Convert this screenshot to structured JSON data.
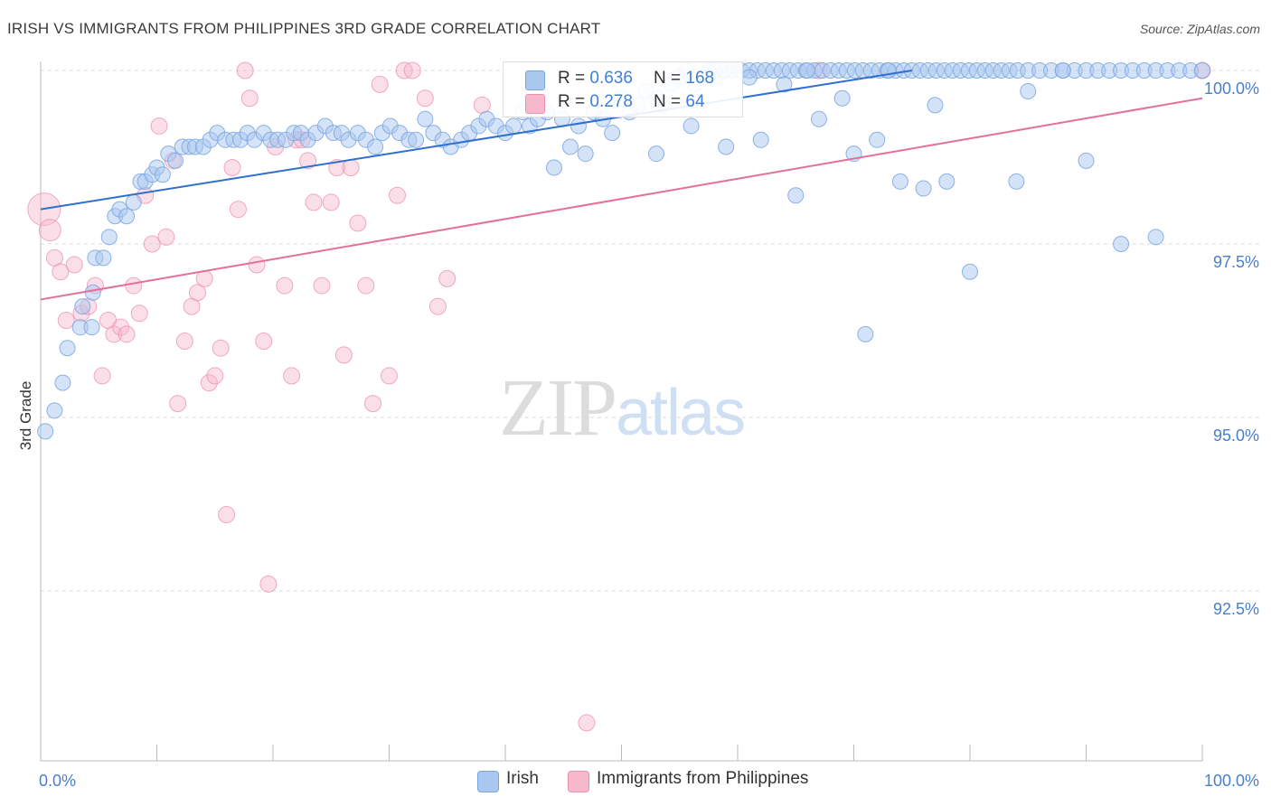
{
  "header": {
    "title": "IRISH VS IMMIGRANTS FROM PHILIPPINES 3RD GRADE CORRELATION CHART",
    "source": "Source: ZipAtlas.com"
  },
  "watermark": {
    "zip": "ZIP",
    "atlas": "atlas"
  },
  "legend": {
    "rows": [
      {
        "r_label": "R = ",
        "r_value": "0.636",
        "n_label": "N = ",
        "n_value": "168",
        "color": "#a9c8f0"
      },
      {
        "r_label": "R = ",
        "r_value": "0.278",
        "n_label": "N = ",
        "n_value": " 64",
        "color": "#f6b9cc"
      }
    ]
  },
  "bottom_legend": {
    "irish": "Irish",
    "philippines": "Immigrants from Philippines"
  },
  "colors": {
    "irish_fill": "#a9c8f0",
    "irish_stroke": "#7aa6e0",
    "irish_line": "#2f6fd0",
    "ph_fill": "#f6b9cc",
    "ph_stroke": "#ee8fae",
    "ph_line": "#e46f98",
    "grid": "#d8d8d8",
    "tick_text": "#4a7fc9"
  },
  "chart_data": {
    "type": "scatter",
    "title": "IRISH VS IMMIGRANTS FROM PHILIPPINES 3RD GRADE CORRELATION CHART",
    "xlabel": "",
    "ylabel": "3rd Grade",
    "xlim": [
      0,
      100
    ],
    "ylim": [
      90.0,
      100.4
    ],
    "x_tick_labels": [
      "0.0%",
      "100.0%"
    ],
    "y_ticks": [
      92.5,
      95.0,
      97.5,
      100.0
    ],
    "y_tick_labels": [
      "92.5%",
      "95.0%",
      "97.5%",
      "100.0%"
    ],
    "grid": "horizontal dashed",
    "series": [
      {
        "name": "Irish",
        "R": 0.636,
        "N": 168,
        "trend": [
          [
            0,
            98.0
          ],
          [
            75,
            100.0
          ]
        ],
        "points": [
          [
            0.4,
            94.8
          ],
          [
            1.2,
            95.1
          ],
          [
            1.9,
            95.5
          ],
          [
            2.3,
            96.0
          ],
          [
            3.4,
            96.3
          ],
          [
            3.6,
            96.6
          ],
          [
            4.4,
            96.3
          ],
          [
            4.5,
            96.8
          ],
          [
            4.7,
            97.3
          ],
          [
            5.4,
            97.3
          ],
          [
            5.9,
            97.6
          ],
          [
            6.4,
            97.9
          ],
          [
            6.8,
            98.0
          ],
          [
            7.4,
            97.9
          ],
          [
            8.0,
            98.1
          ],
          [
            8.6,
            98.4
          ],
          [
            9.0,
            98.4
          ],
          [
            9.6,
            98.5
          ],
          [
            10.0,
            98.6
          ],
          [
            10.5,
            98.5
          ],
          [
            11.0,
            98.8
          ],
          [
            11.6,
            98.7
          ],
          [
            12.2,
            98.9
          ],
          [
            12.8,
            98.9
          ],
          [
            13.3,
            98.9
          ],
          [
            14.0,
            98.9
          ],
          [
            14.6,
            99.0
          ],
          [
            15.2,
            99.1
          ],
          [
            15.9,
            99.0
          ],
          [
            16.6,
            99.0
          ],
          [
            17.2,
            99.0
          ],
          [
            17.8,
            99.1
          ],
          [
            18.4,
            99.0
          ],
          [
            19.2,
            99.1
          ],
          [
            19.8,
            99.0
          ],
          [
            20.4,
            99.0
          ],
          [
            21.1,
            99.0
          ],
          [
            21.8,
            99.1
          ],
          [
            22.4,
            99.1
          ],
          [
            23.0,
            99.0
          ],
          [
            23.7,
            99.1
          ],
          [
            24.5,
            99.2
          ],
          [
            25.2,
            99.1
          ],
          [
            25.9,
            99.1
          ],
          [
            26.5,
            99.0
          ],
          [
            27.3,
            99.1
          ],
          [
            28.0,
            99.0
          ],
          [
            28.8,
            98.9
          ],
          [
            29.4,
            99.1
          ],
          [
            30.1,
            99.2
          ],
          [
            30.9,
            99.1
          ],
          [
            31.7,
            99.0
          ],
          [
            32.3,
            99.0
          ],
          [
            33.1,
            99.3
          ],
          [
            33.8,
            99.1
          ],
          [
            34.6,
            99.0
          ],
          [
            35.3,
            98.9
          ],
          [
            36.2,
            99.0
          ],
          [
            36.9,
            99.1
          ],
          [
            37.7,
            99.2
          ],
          [
            38.4,
            99.3
          ],
          [
            39.2,
            99.2
          ],
          [
            40.0,
            99.1
          ],
          [
            40.7,
            99.2
          ],
          [
            41.5,
            99.4
          ],
          [
            42.1,
            99.2
          ],
          [
            42.8,
            99.3
          ],
          [
            43.6,
            99.4
          ],
          [
            44.2,
            98.6
          ],
          [
            44.9,
            99.3
          ],
          [
            45.6,
            98.9
          ],
          [
            46.3,
            99.2
          ],
          [
            46.9,
            98.8
          ],
          [
            47.6,
            99.4
          ],
          [
            48.4,
            99.3
          ],
          [
            49.2,
            99.1
          ],
          [
            49.9,
            99.6
          ],
          [
            50.7,
            99.4
          ],
          [
            51.4,
            99.5
          ],
          [
            52.1,
            99.7
          ],
          [
            53.0,
            99.6
          ],
          [
            53.5,
            99.5
          ],
          [
            54.3,
            99.8
          ],
          [
            55.0,
            99.9
          ],
          [
            55.6,
            100.0
          ],
          [
            56.3,
            99.8
          ],
          [
            57.0,
            99.9
          ],
          [
            57.6,
            100.0
          ],
          [
            58.2,
            99.9
          ],
          [
            58.9,
            100.0
          ],
          [
            59.6,
            100.0
          ],
          [
            60.3,
            100.0
          ],
          [
            61.0,
            100.0
          ],
          [
            61.7,
            100.0
          ],
          [
            62.4,
            100.0
          ],
          [
            63.1,
            100.0
          ],
          [
            63.8,
            100.0
          ],
          [
            64.5,
            100.0
          ],
          [
            65.2,
            100.0
          ],
          [
            65.9,
            100.0
          ],
          [
            66.6,
            100.0
          ],
          [
            67.3,
            100.0
          ],
          [
            68.0,
            100.0
          ],
          [
            68.7,
            100.0
          ],
          [
            69.4,
            100.0
          ],
          [
            70.1,
            100.0
          ],
          [
            70.8,
            100.0
          ],
          [
            71.5,
            100.0
          ],
          [
            72.2,
            100.0
          ],
          [
            72.9,
            100.0
          ],
          [
            73.6,
            100.0
          ],
          [
            74.3,
            100.0
          ],
          [
            75.0,
            100.0
          ],
          [
            75.7,
            100.0
          ],
          [
            76.4,
            100.0
          ],
          [
            77.1,
            100.0
          ],
          [
            77.8,
            100.0
          ],
          [
            78.5,
            100.0
          ],
          [
            79.2,
            100.0
          ],
          [
            79.9,
            100.0
          ],
          [
            80.6,
            100.0
          ],
          [
            81.3,
            100.0
          ],
          [
            82.0,
            100.0
          ],
          [
            82.7,
            100.0
          ],
          [
            83.4,
            100.0
          ],
          [
            84.1,
            100.0
          ],
          [
            85.0,
            100.0
          ],
          [
            86.0,
            100.0
          ],
          [
            87.0,
            100.0
          ],
          [
            88.0,
            100.0
          ],
          [
            89.0,
            100.0
          ],
          [
            90.0,
            100.0
          ],
          [
            91.0,
            100.0
          ],
          [
            92.0,
            100.0
          ],
          [
            93.0,
            100.0
          ],
          [
            94.0,
            100.0
          ],
          [
            95.0,
            100.0
          ],
          [
            96.0,
            100.0
          ],
          [
            97.0,
            100.0
          ],
          [
            98.0,
            100.0
          ],
          [
            99.0,
            100.0
          ],
          [
            100.0,
            100.0
          ],
          [
            53.0,
            98.8
          ],
          [
            56.0,
            99.2
          ],
          [
            59.0,
            98.9
          ],
          [
            62.0,
            99.0
          ],
          [
            65.0,
            98.2
          ],
          [
            67.0,
            99.3
          ],
          [
            70.0,
            98.8
          ],
          [
            72.0,
            99.0
          ],
          [
            74.0,
            98.4
          ],
          [
            76.0,
            98.3
          ],
          [
            78.0,
            98.4
          ],
          [
            80.0,
            97.1
          ],
          [
            84.0,
            98.4
          ],
          [
            88.0,
            100.0
          ],
          [
            90.0,
            98.7
          ],
          [
            93.0,
            97.5
          ],
          [
            96.0,
            97.6
          ],
          [
            85.0,
            99.7
          ],
          [
            58.0,
            100.0
          ],
          [
            61.0,
            99.9
          ],
          [
            64.0,
            99.8
          ],
          [
            66.0,
            100.0
          ],
          [
            69.0,
            99.6
          ],
          [
            71.0,
            96.2
          ],
          [
            73.0,
            100.0
          ],
          [
            77.0,
            99.5
          ]
        ]
      },
      {
        "name": "Immigrants from Philippines",
        "R": 0.278,
        "N": 64,
        "trend": [
          [
            0,
            96.7
          ],
          [
            100,
            99.6
          ]
        ],
        "points": [
          [
            0.3,
            98.0
          ],
          [
            0.8,
            97.7
          ],
          [
            1.2,
            97.3
          ],
          [
            1.7,
            97.1
          ],
          [
            2.2,
            96.4
          ],
          [
            2.9,
            97.2
          ],
          [
            3.5,
            96.5
          ],
          [
            4.1,
            96.6
          ],
          [
            4.7,
            96.9
          ],
          [
            5.3,
            95.6
          ],
          [
            5.8,
            96.4
          ],
          [
            6.3,
            96.2
          ],
          [
            6.9,
            96.3
          ],
          [
            7.4,
            96.2
          ],
          [
            8.0,
            96.9
          ],
          [
            8.5,
            96.5
          ],
          [
            9.0,
            98.2
          ],
          [
            9.6,
            97.5
          ],
          [
            10.2,
            99.2
          ],
          [
            10.8,
            97.6
          ],
          [
            11.4,
            98.7
          ],
          [
            11.8,
            95.2
          ],
          [
            12.4,
            96.1
          ],
          [
            13.0,
            96.6
          ],
          [
            13.5,
            96.8
          ],
          [
            14.1,
            97.0
          ],
          [
            14.5,
            95.5
          ],
          [
            15.0,
            95.6
          ],
          [
            15.5,
            96.0
          ],
          [
            16.0,
            93.6
          ],
          [
            16.5,
            98.6
          ],
          [
            17.0,
            98.0
          ],
          [
            17.6,
            100.0
          ],
          [
            18.0,
            99.6
          ],
          [
            18.6,
            97.2
          ],
          [
            19.2,
            96.1
          ],
          [
            19.6,
            92.6
          ],
          [
            20.2,
            98.9
          ],
          [
            21.0,
            96.9
          ],
          [
            21.6,
            95.6
          ],
          [
            22.0,
            99.0
          ],
          [
            22.5,
            99.0
          ],
          [
            23.0,
            98.7
          ],
          [
            23.5,
            98.1
          ],
          [
            24.2,
            96.9
          ],
          [
            25.0,
            98.1
          ],
          [
            25.5,
            98.6
          ],
          [
            26.1,
            95.9
          ],
          [
            26.7,
            98.6
          ],
          [
            27.3,
            97.8
          ],
          [
            28.0,
            96.9
          ],
          [
            28.6,
            95.2
          ],
          [
            29.2,
            99.8
          ],
          [
            30.0,
            95.6
          ],
          [
            30.7,
            98.2
          ],
          [
            31.3,
            100.0
          ],
          [
            32.0,
            100.0
          ],
          [
            33.1,
            99.6
          ],
          [
            34.2,
            96.6
          ],
          [
            35.0,
            97.0
          ],
          [
            38.0,
            99.5
          ],
          [
            47.0,
            90.6
          ],
          [
            67.0,
            100.0
          ],
          [
            100.0,
            100.0
          ]
        ]
      }
    ]
  }
}
